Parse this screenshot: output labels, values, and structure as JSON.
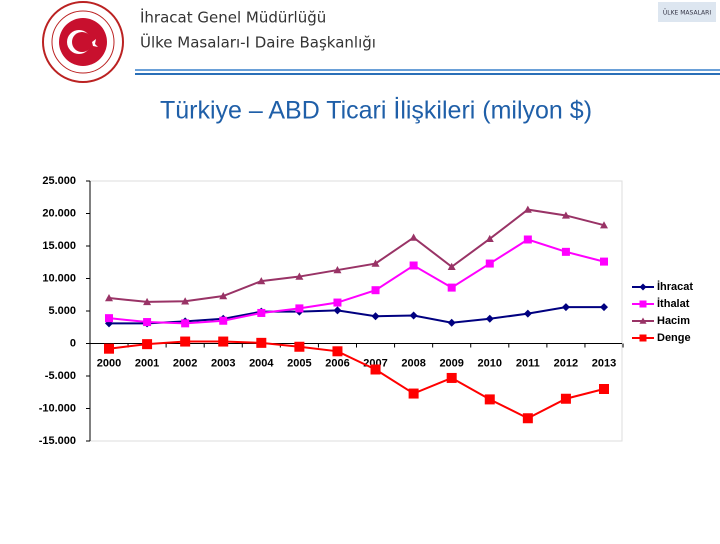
{
  "header": {
    "line1": "İhracat Genel Müdürlüğü",
    "line2": "Ülke Masaları-I Daire Başkanlığı",
    "badge": "ÜLKE MASALARI"
  },
  "chart_data": {
    "type": "line",
    "title": "Türkiye – ABD Ticari İlişkileri (milyon $)",
    "categories": [
      "2000",
      "2001",
      "2002",
      "2003",
      "2004",
      "2005",
      "2006",
      "2007",
      "2008",
      "2009",
      "2010",
      "2011",
      "2012",
      "2013"
    ],
    "series": [
      {
        "name": "İhracat",
        "color": "#000080",
        "marker": "diamond",
        "values": [
          3100,
          3100,
          3400,
          3800,
          4900,
          4900,
          5100,
          4200,
          4300,
          3200,
          3800,
          4600,
          5600,
          5600
        ]
      },
      {
        "name": "İthalat",
        "color": "#ff00ff",
        "marker": "square",
        "values": [
          3900,
          3300,
          3100,
          3500,
          4700,
          5400,
          6300,
          8200,
          12000,
          8600,
          12300,
          16000,
          14100,
          12600
        ]
      },
      {
        "name": "Hacim",
        "color": "#993366",
        "marker": "triangle",
        "values": [
          7000,
          6400,
          6500,
          7300,
          9600,
          10300,
          11300,
          12300,
          16300,
          11800,
          16100,
          20600,
          19700,
          18200
        ]
      },
      {
        "name": "Denge",
        "color": "#ff0000",
        "marker": "square",
        "values": [
          -800,
          -100,
          300,
          300,
          100,
          -500,
          -1200,
          -4000,
          -7700,
          -5300,
          -8600,
          -11500,
          -8500,
          -7000
        ]
      }
    ],
    "ylim": [
      -15000,
      25000
    ],
    "yticks": [
      {
        "value": 25000,
        "label": "25.000"
      },
      {
        "value": 20000,
        "label": "20.000"
      },
      {
        "value": 15000,
        "label": "15.000"
      },
      {
        "value": 10000,
        "label": "10.000"
      },
      {
        "value": 5000,
        "label": "5.000"
      },
      0,
      {
        "value": -5000,
        "label": "-5.000"
      },
      {
        "value": -10000,
        "label": "-10.000"
      },
      {
        "value": -15000,
        "label": "-15.000"
      }
    ],
    "legend": "right"
  }
}
